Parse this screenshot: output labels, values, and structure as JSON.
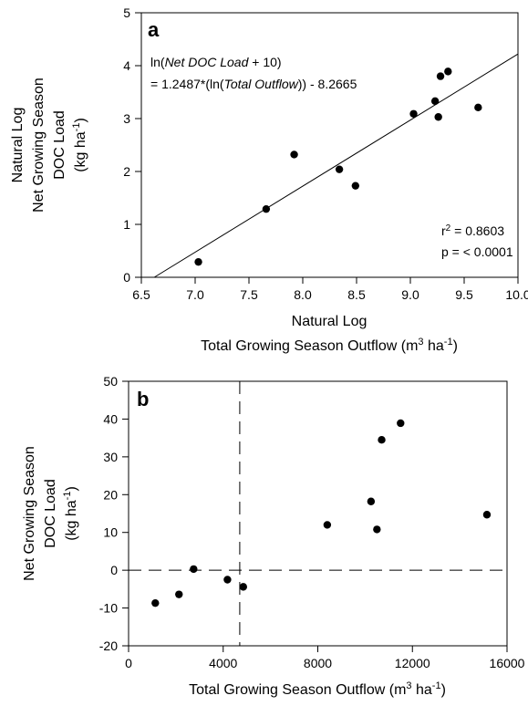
{
  "chart_data": [
    {
      "panel": "a",
      "type": "scatter",
      "xlabel_line1": "Natural Log",
      "xlabel_line2": "Total Growing Season Outflow (m",
      "xlabel_line2_sup": "3",
      "xlabel_line2_mid": " ha",
      "xlabel_line2_sup2": "-1",
      "xlabel_line2_end": ")",
      "ylabel_line1": "Natural Log",
      "ylabel_line2": "Net Growing Season",
      "ylabel_line3": "DOC Load",
      "ylabel_line4_a": "(kg ha",
      "ylabel_line4_sup": "-1",
      "ylabel_line4_b": ")",
      "xlim": [
        6.5,
        10.0
      ],
      "ylim": [
        0,
        5
      ],
      "xticks": [
        6.5,
        7.0,
        7.5,
        8.0,
        8.5,
        9.0,
        9.5,
        10.0
      ],
      "xtick_labels": [
        "6.5",
        "7.0",
        "7.5",
        "8.0",
        "8.5",
        "9.0",
        "9.5",
        "10.0"
      ],
      "yticks": [
        0,
        1,
        2,
        3,
        4,
        5
      ],
      "ytick_labels": [
        "0",
        "1",
        "2",
        "3",
        "4",
        "5"
      ],
      "points": [
        {
          "x": 7.03,
          "y": 0.29
        },
        {
          "x": 7.66,
          "y": 1.29
        },
        {
          "x": 7.92,
          "y": 2.32
        },
        {
          "x": 8.34,
          "y": 2.04
        },
        {
          "x": 8.49,
          "y": 1.73
        },
        {
          "x": 9.03,
          "y": 3.09
        },
        {
          "x": 9.23,
          "y": 3.33
        },
        {
          "x": 9.26,
          "y": 3.03
        },
        {
          "x": 9.28,
          "y": 3.8
        },
        {
          "x": 9.35,
          "y": 3.89
        },
        {
          "x": 9.63,
          "y": 3.21
        }
      ],
      "fit": {
        "slope": 1.2487,
        "intercept": -8.2665,
        "offset": 10
      },
      "equation_line1_a": "ln(",
      "equation_line1_it": "Net DOC Load",
      "equation_line1_b": " + 10)",
      "equation_line2_a": "= 1.2487*(ln(",
      "equation_line2_it": "Total Outflow",
      "equation_line2_b": ")) - 8.2665",
      "r2_label_a": "r",
      "r2_label_sup": "2",
      "r2_label_b": " = 0.8603",
      "p_label": "p = < 0.0001"
    },
    {
      "panel": "b",
      "type": "scatter",
      "xlabel_a": "Total Growing Season Outflow (m",
      "xlabel_sup": "3",
      "xlabel_mid": " ha",
      "xlabel_sup2": "-1",
      "xlabel_end": ")",
      "ylabel_line1": "Net Growing Season",
      "ylabel_line2": "DOC Load",
      "ylabel_line3_a": "(kg ha",
      "ylabel_line3_sup": "-1",
      "ylabel_line3_b": ")",
      "xlim": [
        0,
        16000
      ],
      "ylim": [
        -20,
        50
      ],
      "xticks": [
        0,
        4000,
        8000,
        12000,
        16000
      ],
      "xtick_labels": [
        "0",
        "4000",
        "8000",
        "12000",
        "16000"
      ],
      "yticks": [
        -20,
        -10,
        0,
        10,
        20,
        30,
        40,
        50
      ],
      "ytick_labels": [
        "-20",
        "-10",
        "0",
        "10",
        "20",
        "30",
        "40",
        "50"
      ],
      "points": [
        {
          "x": 1130,
          "y": -8.7
        },
        {
          "x": 2130,
          "y": -6.4
        },
        {
          "x": 2750,
          "y": 0.3
        },
        {
          "x": 4180,
          "y": -2.5
        },
        {
          "x": 4850,
          "y": -4.4
        },
        {
          "x": 8400,
          "y": 12.0
        },
        {
          "x": 10250,
          "y": 18.2
        },
        {
          "x": 10500,
          "y": 10.8
        },
        {
          "x": 10700,
          "y": 34.5
        },
        {
          "x": 11500,
          "y": 38.9
        },
        {
          "x": 15150,
          "y": 14.7
        }
      ],
      "ref_vline_x": 4700,
      "ref_hline_y": 0
    }
  ]
}
